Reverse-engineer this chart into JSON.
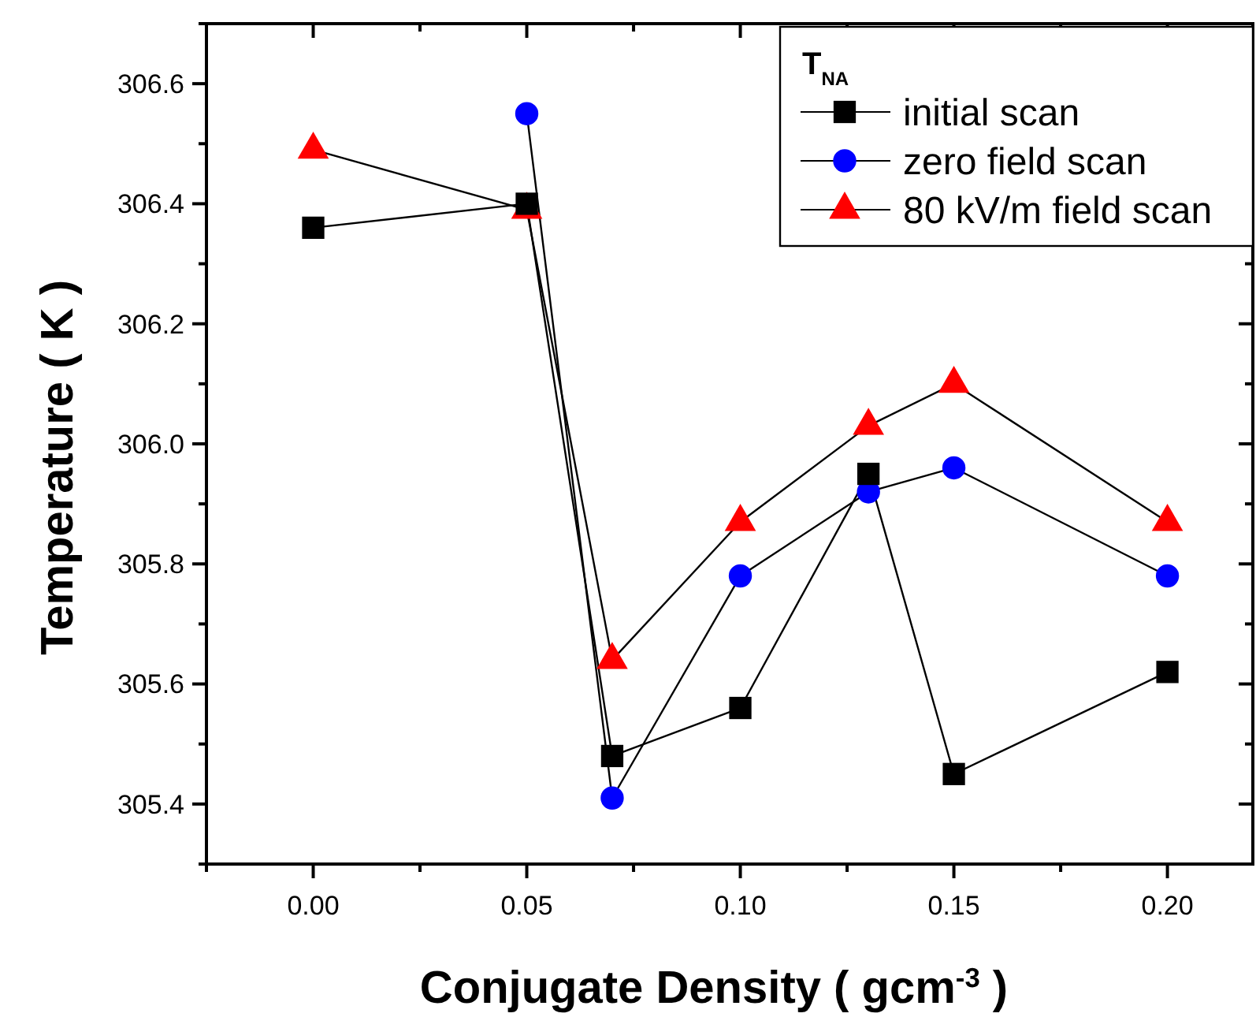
{
  "chart_data": {
    "type": "line",
    "xlabel": "Conjugate Density ( gcm$^{-3}$ )",
    "ylabel": "Temperature ( K )",
    "legend_title": "T$_{NA}$",
    "legend": "top right",
    "line_style": "solid",
    "grid": false,
    "x": [
      0.0,
      0.05,
      0.07,
      0.1,
      0.13,
      0.15,
      0.2
    ],
    "series": [
      {
        "name": "initial scan",
        "color": "#000000",
        "marker": "square",
        "values": [
          306.36,
          306.4,
          305.48,
          305.56,
          305.95,
          305.45,
          305.62
        ]
      },
      {
        "name": "zero field scan",
        "color": "#0000ff",
        "marker": "circle",
        "x": [
          0.05,
          0.07,
          0.1,
          0.13,
          0.15,
          0.2
        ],
        "values": [
          306.55,
          305.41,
          305.78,
          305.92,
          305.96,
          305.78
        ]
      },
      {
        "name": "80 kV/m field scan",
        "color": "#ff0000",
        "marker": "triangle",
        "values": [
          306.49,
          306.39,
          305.64,
          305.87,
          306.03,
          306.1,
          305.87
        ]
      }
    ],
    "xlim": [
      -0.025,
      0.22
    ],
    "xticks": [
      {
        "value": -0.025,
        "label": null
      },
      {
        "value": 0.0,
        "label": "0.00"
      },
      {
        "value": 0.025,
        "label": null
      },
      {
        "value": 0.05,
        "label": "0.05"
      },
      {
        "value": 0.075,
        "label": null
      },
      {
        "value": 0.1,
        "label": "0.10"
      },
      {
        "value": 0.125,
        "label": null
      },
      {
        "value": 0.15,
        "label": "0.15"
      },
      {
        "value": 0.175,
        "label": null
      },
      {
        "value": 0.2,
        "label": "0.20"
      }
    ],
    "ylim": [
      305.3,
      306.7
    ],
    "yticks": [
      {
        "value": 305.3,
        "label": null
      },
      {
        "value": 305.4,
        "label": "305.4"
      },
      {
        "value": 305.5,
        "label": null
      },
      {
        "value": 305.6,
        "label": "305.6"
      },
      {
        "value": 305.7,
        "label": null
      },
      {
        "value": 305.8,
        "label": "305.8"
      },
      {
        "value": 305.9,
        "label": null
      },
      {
        "value": 306.0,
        "label": "306.0"
      },
      {
        "value": 306.1,
        "label": null
      },
      {
        "value": 306.2,
        "label": "306.2"
      },
      {
        "value": 306.3,
        "label": null
      },
      {
        "value": 306.4,
        "label": "306.4"
      },
      {
        "value": 306.5,
        "label": null
      },
      {
        "value": 306.6,
        "label": "306.6"
      },
      {
        "value": 306.7,
        "label": null
      }
    ]
  }
}
